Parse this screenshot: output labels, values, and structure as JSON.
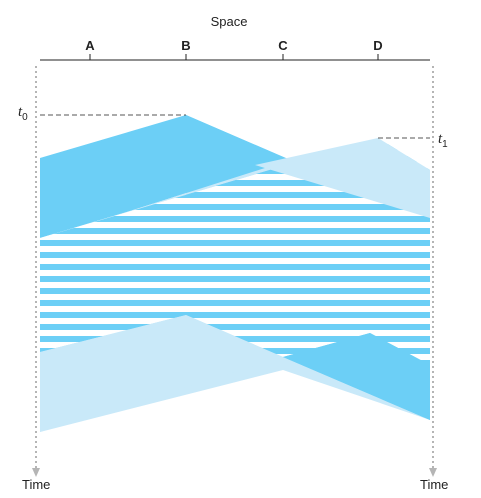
{
  "title": "Space",
  "nodes": [
    "A",
    "B",
    "C",
    "D"
  ],
  "time_axis_labels": {
    "left": "Time",
    "right": "Time"
  },
  "time_markers": {
    "t0": {
      "symbol": "t",
      "subscript": "0"
    },
    "t1": {
      "symbol": "t",
      "subscript": "1"
    }
  },
  "colors": {
    "frame_B": "#6ccff6",
    "frame_D": "#c9e9f9",
    "collision_stripe": "#6ccff6",
    "axis": "#222222",
    "timeline": "#b5b5b5",
    "dashed": "#555555"
  }
}
